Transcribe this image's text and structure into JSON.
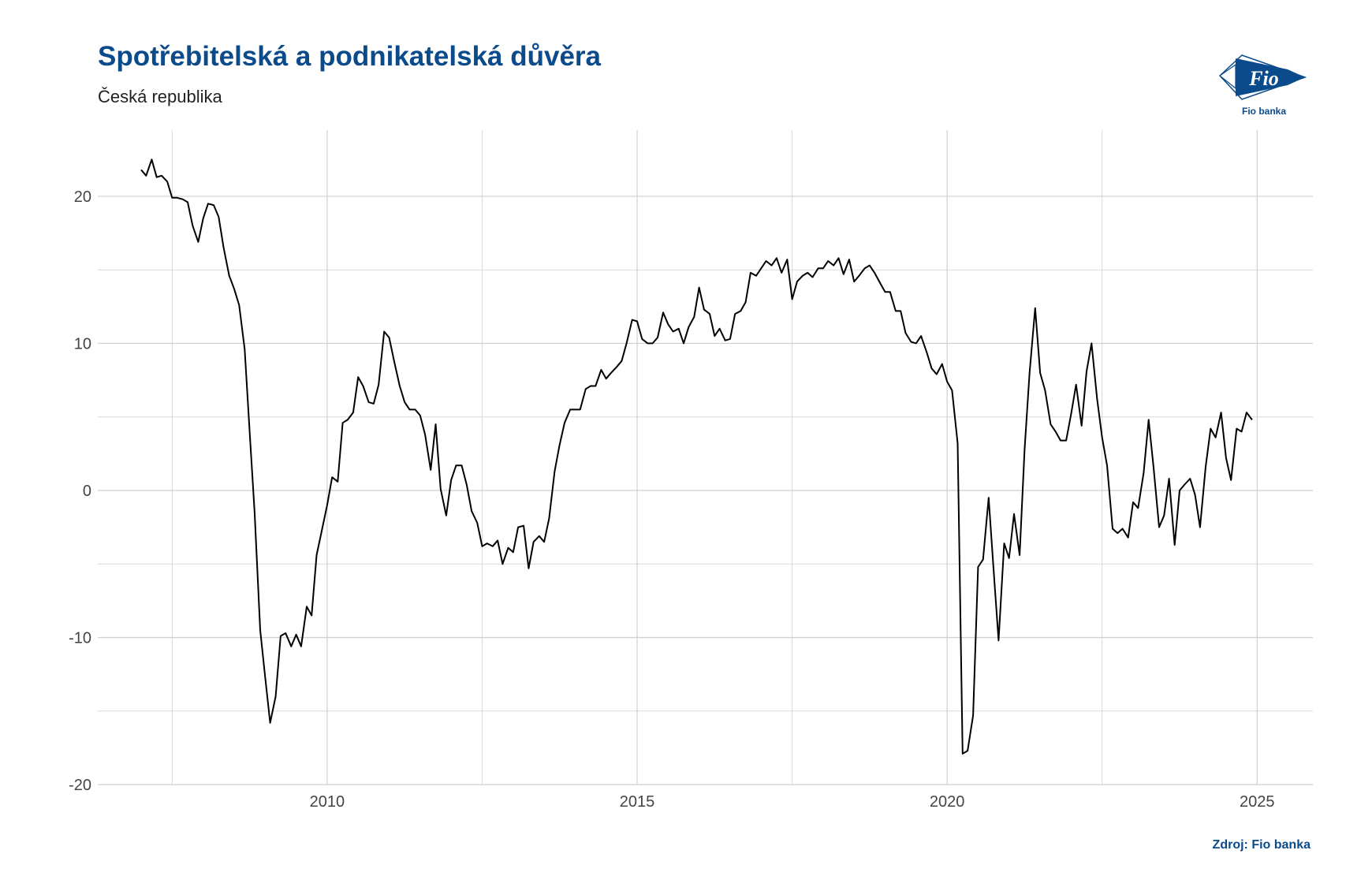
{
  "header": {
    "title": "Spotřebitelská a podnikatelská důvěra",
    "subtitle": "Česká republika"
  },
  "logo": {
    "icon": "fio-flag-logo",
    "text": "Fio",
    "caption": "Fio banka",
    "color": "#0b4a8b"
  },
  "footer": {
    "source": "Zdroj: Fio banka"
  },
  "chart_data": {
    "type": "line",
    "title": "Spotřebitelská a podnikatelská důvěra",
    "subtitle": "Česká republika",
    "xlabel": "",
    "ylabel": "",
    "xlim": [
      2006.3,
      2025.9
    ],
    "ylim": [
      -20,
      24.5
    ],
    "x_ticks": [
      2010,
      2015,
      2020,
      2025
    ],
    "x_tick_labels": [
      "2010",
      "2015",
      "2020",
      "2025"
    ],
    "y_ticks": [
      -20,
      -10,
      0,
      10,
      20
    ],
    "y_tick_labels": [
      "-20",
      "-10",
      "0",
      "10",
      "20"
    ],
    "grid": true,
    "line_color": "#000000",
    "series": [
      {
        "values": [
          [
            2007.0,
            21.8
          ],
          [
            2007.08,
            21.4
          ],
          [
            2007.17,
            22.5
          ],
          [
            2007.25,
            21.3
          ],
          [
            2007.33,
            21.4
          ],
          [
            2007.42,
            21.0
          ],
          [
            2007.5,
            19.9
          ],
          [
            2007.58,
            19.9
          ],
          [
            2007.67,
            19.8
          ],
          [
            2007.75,
            19.6
          ],
          [
            2007.83,
            18.0
          ],
          [
            2007.92,
            16.9
          ],
          [
            2008.0,
            18.5
          ],
          [
            2008.08,
            19.5
          ],
          [
            2008.17,
            19.4
          ],
          [
            2008.25,
            18.6
          ],
          [
            2008.33,
            16.5
          ],
          [
            2008.42,
            14.6
          ],
          [
            2008.5,
            13.7
          ],
          [
            2008.58,
            12.6
          ],
          [
            2008.67,
            9.6
          ],
          [
            2008.75,
            4.0
          ],
          [
            2008.83,
            -1.5
          ],
          [
            2008.92,
            -9.5
          ],
          [
            2009.0,
            -12.7
          ],
          [
            2009.08,
            -15.8
          ],
          [
            2009.17,
            -14.0
          ],
          [
            2009.25,
            -9.9
          ],
          [
            2009.33,
            -9.7
          ],
          [
            2009.42,
            -10.6
          ],
          [
            2009.5,
            -9.8
          ],
          [
            2009.58,
            -10.6
          ],
          [
            2009.67,
            -7.9
          ],
          [
            2009.75,
            -8.5
          ],
          [
            2009.83,
            -4.4
          ],
          [
            2009.92,
            -2.6
          ],
          [
            2010.0,
            -1.0
          ],
          [
            2010.08,
            0.9
          ],
          [
            2010.17,
            0.6
          ],
          [
            2010.25,
            4.6
          ],
          [
            2010.33,
            4.8
          ],
          [
            2010.42,
            5.3
          ],
          [
            2010.5,
            7.7
          ],
          [
            2010.58,
            7.1
          ],
          [
            2010.67,
            6.0
          ],
          [
            2010.75,
            5.9
          ],
          [
            2010.83,
            7.2
          ],
          [
            2010.92,
            10.8
          ],
          [
            2011.0,
            10.4
          ],
          [
            2011.08,
            8.8
          ],
          [
            2011.17,
            7.1
          ],
          [
            2011.25,
            6.0
          ],
          [
            2011.33,
            5.5
          ],
          [
            2011.42,
            5.5
          ],
          [
            2011.5,
            5.1
          ],
          [
            2011.58,
            3.8
          ],
          [
            2011.67,
            1.4
          ],
          [
            2011.75,
            4.5
          ],
          [
            2011.83,
            0.1
          ],
          [
            2011.92,
            -1.7
          ],
          [
            2012.0,
            0.7
          ],
          [
            2012.08,
            1.7
          ],
          [
            2012.17,
            1.7
          ],
          [
            2012.25,
            0.4
          ],
          [
            2012.33,
            -1.4
          ],
          [
            2012.42,
            -2.2
          ],
          [
            2012.5,
            -3.8
          ],
          [
            2012.58,
            -3.6
          ],
          [
            2012.67,
            -3.8
          ],
          [
            2012.75,
            -3.4
          ],
          [
            2012.83,
            -5.0
          ],
          [
            2012.92,
            -3.9
          ],
          [
            2013.0,
            -4.2
          ],
          [
            2013.08,
            -2.5
          ],
          [
            2013.17,
            -2.4
          ],
          [
            2013.25,
            -5.3
          ],
          [
            2013.33,
            -3.5
          ],
          [
            2013.42,
            -3.1
          ],
          [
            2013.5,
            -3.5
          ],
          [
            2013.58,
            -1.9
          ],
          [
            2013.67,
            1.3
          ],
          [
            2013.75,
            3.1
          ],
          [
            2013.83,
            4.6
          ],
          [
            2013.92,
            5.5
          ],
          [
            2014.0,
            5.5
          ],
          [
            2014.08,
            5.5
          ],
          [
            2014.17,
            6.9
          ],
          [
            2014.25,
            7.1
          ],
          [
            2014.33,
            7.1
          ],
          [
            2014.42,
            8.2
          ],
          [
            2014.5,
            7.6
          ],
          [
            2014.58,
            8.0
          ],
          [
            2014.67,
            8.4
          ],
          [
            2014.75,
            8.8
          ],
          [
            2014.83,
            10.0
          ],
          [
            2014.92,
            11.6
          ],
          [
            2015.0,
            11.5
          ],
          [
            2015.08,
            10.3
          ],
          [
            2015.17,
            10.0
          ],
          [
            2015.25,
            10.0
          ],
          [
            2015.33,
            10.4
          ],
          [
            2015.42,
            12.1
          ],
          [
            2015.5,
            11.3
          ],
          [
            2015.58,
            10.8
          ],
          [
            2015.67,
            11.0
          ],
          [
            2015.75,
            10.0
          ],
          [
            2015.83,
            11.1
          ],
          [
            2015.92,
            11.8
          ],
          [
            2016.0,
            13.8
          ],
          [
            2016.08,
            12.3
          ],
          [
            2016.17,
            12.0
          ],
          [
            2016.25,
            10.5
          ],
          [
            2016.33,
            11.0
          ],
          [
            2016.42,
            10.2
          ],
          [
            2016.5,
            10.3
          ],
          [
            2016.58,
            12.0
          ],
          [
            2016.67,
            12.2
          ],
          [
            2016.75,
            12.8
          ],
          [
            2016.83,
            14.8
          ],
          [
            2016.92,
            14.6
          ],
          [
            2017.0,
            15.1
          ],
          [
            2017.08,
            15.6
          ],
          [
            2017.17,
            15.3
          ],
          [
            2017.25,
            15.8
          ],
          [
            2017.33,
            14.8
          ],
          [
            2017.42,
            15.7
          ],
          [
            2017.5,
            13.0
          ],
          [
            2017.58,
            14.2
          ],
          [
            2017.67,
            14.6
          ],
          [
            2017.75,
            14.8
          ],
          [
            2017.83,
            14.5
          ],
          [
            2017.92,
            15.1
          ],
          [
            2018.0,
            15.1
          ],
          [
            2018.08,
            15.6
          ],
          [
            2018.17,
            15.3
          ],
          [
            2018.25,
            15.8
          ],
          [
            2018.33,
            14.7
          ],
          [
            2018.42,
            15.7
          ],
          [
            2018.5,
            14.2
          ],
          [
            2018.58,
            14.6
          ],
          [
            2018.67,
            15.1
          ],
          [
            2018.75,
            15.3
          ],
          [
            2018.83,
            14.8
          ],
          [
            2018.92,
            14.1
          ],
          [
            2019.0,
            13.5
          ],
          [
            2019.08,
            13.5
          ],
          [
            2019.17,
            12.2
          ],
          [
            2019.25,
            12.2
          ],
          [
            2019.33,
            10.7
          ],
          [
            2019.42,
            10.1
          ],
          [
            2019.5,
            10.0
          ],
          [
            2019.58,
            10.5
          ],
          [
            2019.67,
            9.4
          ],
          [
            2019.75,
            8.3
          ],
          [
            2019.83,
            7.9
          ],
          [
            2019.92,
            8.6
          ],
          [
            2020.0,
            7.4
          ],
          [
            2020.08,
            6.8
          ],
          [
            2020.17,
            3.2
          ],
          [
            2020.25,
            -17.9
          ],
          [
            2020.33,
            -17.7
          ],
          [
            2020.42,
            -15.3
          ],
          [
            2020.5,
            -5.2
          ],
          [
            2020.58,
            -4.7
          ],
          [
            2020.67,
            -0.5
          ],
          [
            2020.75,
            -5.4
          ],
          [
            2020.83,
            -10.2
          ],
          [
            2020.92,
            -3.6
          ],
          [
            2021.0,
            -4.6
          ],
          [
            2021.08,
            -1.6
          ],
          [
            2021.17,
            -4.4
          ],
          [
            2021.25,
            2.8
          ],
          [
            2021.33,
            8.0
          ],
          [
            2021.42,
            12.4
          ],
          [
            2021.5,
            8.0
          ],
          [
            2021.58,
            6.8
          ],
          [
            2021.67,
            4.5
          ],
          [
            2021.75,
            4.0
          ],
          [
            2021.83,
            3.4
          ],
          [
            2021.92,
            3.4
          ],
          [
            2022.0,
            5.2
          ],
          [
            2022.08,
            7.2
          ],
          [
            2022.17,
            4.4
          ],
          [
            2022.25,
            8.1
          ],
          [
            2022.33,
            10.0
          ],
          [
            2022.42,
            6.2
          ],
          [
            2022.5,
            3.6
          ],
          [
            2022.58,
            1.7
          ],
          [
            2022.67,
            -2.6
          ],
          [
            2022.75,
            -2.9
          ],
          [
            2022.83,
            -2.6
          ],
          [
            2022.92,
            -3.2
          ],
          [
            2023.0,
            -0.8
          ],
          [
            2023.08,
            -1.2
          ],
          [
            2023.17,
            1.2
          ],
          [
            2023.25,
            4.8
          ],
          [
            2023.33,
            1.6
          ],
          [
            2023.42,
            -2.5
          ],
          [
            2023.5,
            -1.7
          ],
          [
            2023.58,
            0.8
          ],
          [
            2023.67,
            -3.7
          ],
          [
            2023.75,
            0.0
          ],
          [
            2023.83,
            0.4
          ],
          [
            2023.92,
            0.8
          ],
          [
            2024.0,
            -0.3
          ],
          [
            2024.08,
            -2.5
          ],
          [
            2024.17,
            1.6
          ],
          [
            2024.25,
            4.2
          ],
          [
            2024.33,
            3.6
          ],
          [
            2024.42,
            5.3
          ],
          [
            2024.5,
            2.2
          ],
          [
            2024.58,
            0.7
          ],
          [
            2024.67,
            4.2
          ],
          [
            2024.75,
            4.0
          ],
          [
            2024.83,
            5.3
          ],
          [
            2024.92,
            4.8
          ]
        ]
      }
    ]
  }
}
